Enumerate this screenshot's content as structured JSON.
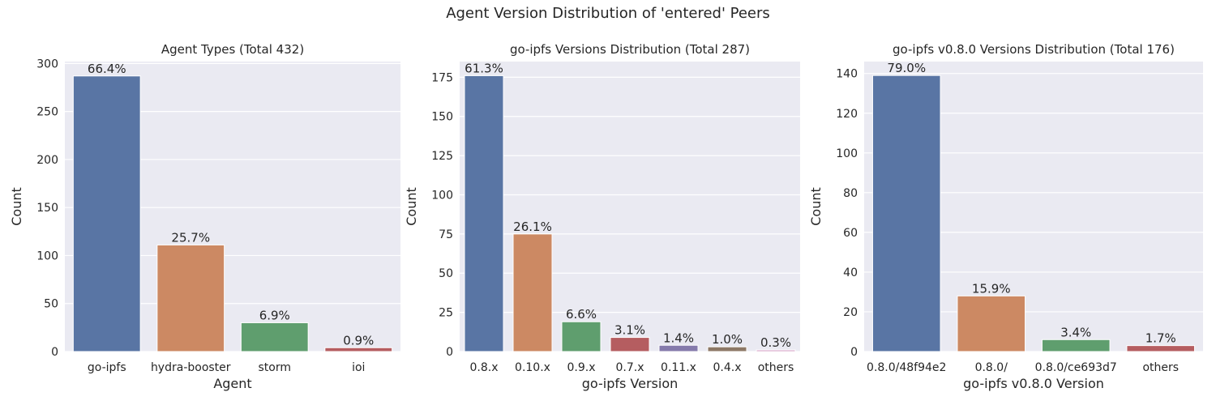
{
  "figure_title": "Agent Version Distribution of 'entered' Peers",
  "chart_data": [
    {
      "type": "bar",
      "title": "Agent Types (Total 432)",
      "xlabel": "Agent",
      "ylabel": "Count",
      "categories": [
        "go-ipfs",
        "hydra-booster",
        "storm",
        "ioi"
      ],
      "values": [
        287,
        111,
        30,
        4
      ],
      "labels": [
        "66.4%",
        "25.7%",
        "6.9%",
        "0.9%"
      ],
      "colors": [
        "#5975a4",
        "#cc8963",
        "#5f9e6e",
        "#b55d60"
      ],
      "ylim": [
        0,
        302
      ],
      "yticks": [
        0,
        50,
        100,
        150,
        200,
        250,
        300
      ],
      "grid": true
    },
    {
      "type": "bar",
      "title": "go-ipfs Versions Distribution (Total 287)",
      "xlabel": "go-ipfs Version",
      "ylabel": "Count",
      "categories": [
        "0.8.x",
        "0.10.x",
        "0.9.x",
        "0.7.x",
        "0.11.x",
        "0.4.x",
        "others"
      ],
      "values": [
        176,
        75,
        19,
        9,
        4,
        3,
        1
      ],
      "labels": [
        "61.3%",
        "26.1%",
        "6.6%",
        "3.1%",
        "1.4%",
        "1.0%",
        "0.3%"
      ],
      "colors": [
        "#5975a4",
        "#cc8963",
        "#5f9e6e",
        "#b55d60",
        "#857aab",
        "#8d7866",
        "#d095bf"
      ],
      "ylim": [
        0,
        185
      ],
      "yticks": [
        0,
        25,
        50,
        75,
        100,
        125,
        150,
        175
      ],
      "grid": true
    },
    {
      "type": "bar",
      "title": "go-ipfs v0.8.0 Versions Distribution (Total 176)",
      "xlabel": "go-ipfs v0.8.0 Version",
      "ylabel": "Count",
      "categories": [
        "0.8.0/48f94e2",
        "0.8.0/",
        "0.8.0/ce693d7",
        "others"
      ],
      "values": [
        139,
        28,
        6,
        3
      ],
      "labels": [
        "79.0%",
        "15.9%",
        "3.4%",
        "1.7%"
      ],
      "colors": [
        "#5975a4",
        "#cc8963",
        "#5f9e6e",
        "#b55d60"
      ],
      "ylim": [
        0,
        146
      ],
      "yticks": [
        0,
        20,
        40,
        60,
        80,
        100,
        120,
        140
      ],
      "grid": true
    }
  ]
}
